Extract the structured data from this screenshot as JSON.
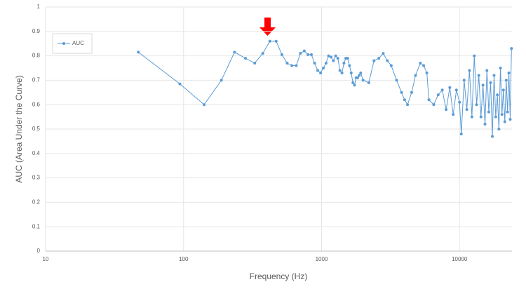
{
  "chart_data": {
    "type": "line",
    "xlabel": "Frequency (Hz)",
    "ylabel": "AUC (Area Under the Curve)",
    "xscale": "log",
    "xlim": [
      10,
      24000
    ],
    "xticks": [
      10,
      100,
      1000,
      10000
    ],
    "ylim": [
      0,
      1
    ],
    "yticks": [
      0,
      0.1,
      0.2,
      0.3,
      0.4,
      0.5,
      0.6,
      0.7,
      0.8,
      0.9,
      1
    ],
    "grid": true,
    "legend": "upper left",
    "x": [
      47,
      94,
      141,
      188,
      234,
      281,
      328,
      375,
      422,
      469,
      516,
      563,
      609,
      656,
      703,
      750,
      797,
      844,
      891,
      938,
      984,
      1031,
      1078,
      1125,
      1172,
      1219,
      1266,
      1313,
      1359,
      1406,
      1453,
      1500,
      1547,
      1594,
      1641,
      1688,
      1734,
      1781,
      1828,
      1875,
      1922,
      2000,
      2200,
      2400,
      2600,
      2800,
      3000,
      3200,
      3500,
      3800,
      4000,
      4200,
      4500,
      4800,
      5200,
      5500,
      5800,
      6000,
      6500,
      7000,
      7500,
      8000,
      8500,
      9000,
      9500,
      10000,
      10300,
      10800,
      11300,
      11800,
      12300,
      12800,
      13300,
      13800,
      14300,
      14800,
      15300,
      15800,
      16300,
      16800,
      17300,
      17800,
      18300,
      18800,
      19300,
      19800,
      20300,
      20800,
      21300,
      21800,
      22300,
      22800,
      23300,
      23800
    ],
    "series": [
      {
        "name": "AUC",
        "color": "#5b9bd5",
        "values": [
          0.815,
          0.685,
          0.6,
          0.7,
          0.815,
          0.79,
          0.77,
          0.81,
          0.86,
          0.86,
          0.805,
          0.77,
          0.76,
          0.76,
          0.81,
          0.82,
          0.805,
          0.805,
          0.77,
          0.74,
          0.73,
          0.75,
          0.77,
          0.8,
          0.795,
          0.78,
          0.8,
          0.79,
          0.74,
          0.73,
          0.77,
          0.79,
          0.79,
          0.76,
          0.73,
          0.69,
          0.68,
          0.71,
          0.71,
          0.72,
          0.73,
          0.7,
          0.69,
          0.78,
          0.79,
          0.81,
          0.78,
          0.76,
          0.7,
          0.65,
          0.62,
          0.6,
          0.65,
          0.72,
          0.77,
          0.76,
          0.73,
          0.62,
          0.6,
          0.64,
          0.66,
          0.58,
          0.67,
          0.56,
          0.66,
          0.61,
          0.48,
          0.7,
          0.58,
          0.74,
          0.55,
          0.8,
          0.6,
          0.72,
          0.55,
          0.68,
          0.52,
          0.74,
          0.57,
          0.69,
          0.47,
          0.72,
          0.55,
          0.64,
          0.5,
          0.75,
          0.56,
          0.66,
          0.53,
          0.7,
          0.57,
          0.73,
          0.54,
          0.83
        ]
      }
    ]
  }
}
